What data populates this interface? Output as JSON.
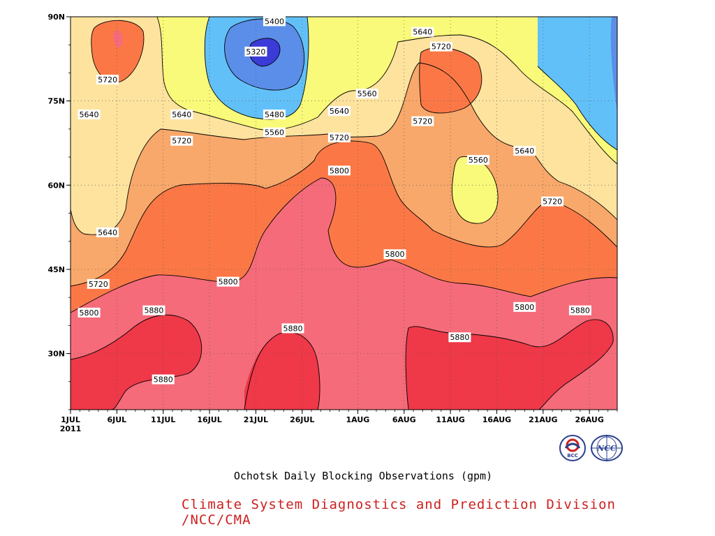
{
  "chart_data": {
    "type": "heatmap",
    "title": "",
    "xlabel": "",
    "ylabel": "",
    "x_ticks": [
      {
        "day": 0,
        "label": "1JUL",
        "sub": "2011"
      },
      {
        "day": 5,
        "label": "6JUL"
      },
      {
        "day": 10,
        "label": "11JUL"
      },
      {
        "day": 15,
        "label": "16JUL"
      },
      {
        "day": 20,
        "label": "21JUL"
      },
      {
        "day": 25,
        "label": "26JUL"
      },
      {
        "day": 31,
        "label": "1AUG"
      },
      {
        "day": 36,
        "label": "6AUG"
      },
      {
        "day": 41,
        "label": "11AUG"
      },
      {
        "day": 46,
        "label": "16AUG"
      },
      {
        "day": 51,
        "label": "21AUG"
      },
      {
        "day": 56,
        "label": "26AUG"
      }
    ],
    "x_range_days": [
      0,
      59
    ],
    "y_ticks": [
      {
        "lat": 30,
        "label": "30N"
      },
      {
        "lat": 45,
        "label": "45N"
      },
      {
        "lat": 60,
        "label": "60N"
      },
      {
        "lat": 75,
        "label": "75N"
      },
      {
        "lat": 90,
        "label": "90N"
      }
    ],
    "y_range": [
      20,
      90
    ],
    "contour_levels": [
      5320,
      5400,
      5480,
      5560,
      5640,
      5720,
      5800,
      5880
    ],
    "contour_labels": [
      {
        "text": "5400",
        "day": 22,
        "lat": 89.2
      },
      {
        "text": "5320",
        "day": 20,
        "lat": 83.8
      },
      {
        "text": "5720",
        "day": 4,
        "lat": 78.8
      },
      {
        "text": "5640",
        "day": 2,
        "lat": 72.6
      },
      {
        "text": "5640",
        "day": 12,
        "lat": 72.6
      },
      {
        "text": "5480",
        "day": 22,
        "lat": 72.6
      },
      {
        "text": "5560",
        "day": 22,
        "lat": 69.4
      },
      {
        "text": "5720",
        "day": 12,
        "lat": 67.9
      },
      {
        "text": "5640",
        "day": 29,
        "lat": 73.2
      },
      {
        "text": "5720",
        "day": 29,
        "lat": 68.5
      },
      {
        "text": "5560",
        "day": 32,
        "lat": 76.3
      },
      {
        "text": "5640",
        "day": 38,
        "lat": 87.3
      },
      {
        "text": "5720",
        "day": 40,
        "lat": 84.7
      },
      {
        "text": "5720",
        "day": 38,
        "lat": 71.4
      },
      {
        "text": "5800",
        "day": 29,
        "lat": 62.6
      },
      {
        "text": "5560",
        "day": 44,
        "lat": 64.5
      },
      {
        "text": "5640",
        "day": 49,
        "lat": 66.1
      },
      {
        "text": "5720",
        "day": 52,
        "lat": 57.1
      },
      {
        "text": "5640",
        "day": 4,
        "lat": 51.6
      },
      {
        "text": "5720",
        "day": 3,
        "lat": 42.4
      },
      {
        "text": "5800",
        "day": 17,
        "lat": 42.8
      },
      {
        "text": "5800",
        "day": 35,
        "lat": 47.7
      },
      {
        "text": "5800",
        "day": 49,
        "lat": 38.3
      },
      {
        "text": "5800",
        "day": 2,
        "lat": 37.3
      },
      {
        "text": "5880",
        "day": 9,
        "lat": 37.7
      },
      {
        "text": "5880",
        "day": 24,
        "lat": 34.5
      },
      {
        "text": "5880",
        "day": 42,
        "lat": 32.9
      },
      {
        "text": "5880",
        "day": 55,
        "lat": 37.7
      },
      {
        "text": "5880",
        "day": 10,
        "lat": 25.4
      }
    ],
    "colors": {
      "5320": "#3b3bd8",
      "5400": "#5b8ee8",
      "5480": "#62c0f8",
      "5560": "#fafa7a",
      "5640": "#fde39e",
      "5720": "#f8a86a",
      "5800": "#fb7846",
      "5880": "#f56b7a",
      "5960": "#ef3848"
    }
  },
  "caption": "Ochotsk Daily Blocking Observations (gpm)",
  "credit": "Climate System Diagnostics and Prediction Division /NCC/CMA",
  "logos": [
    "BCC",
    "NCC"
  ]
}
